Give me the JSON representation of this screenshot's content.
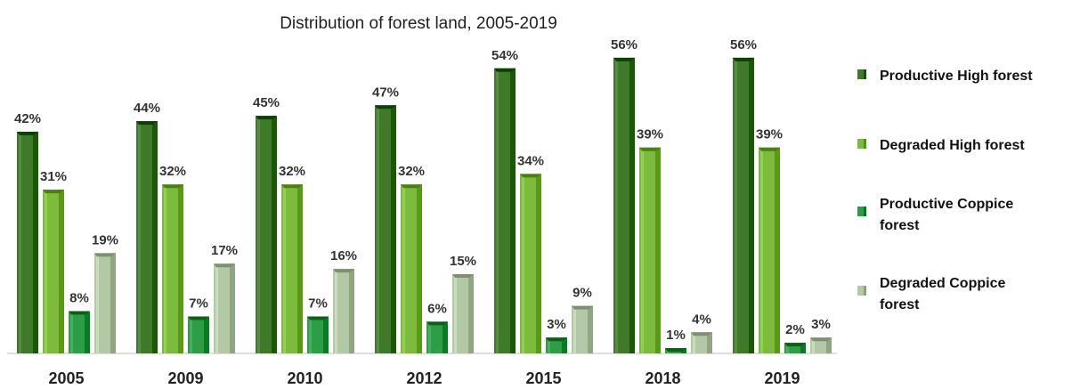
{
  "chart_data": {
    "type": "bar",
    "title": "Distribution of forest land, 2005-2019",
    "categories": [
      "2005",
      "2009",
      "2010",
      "2012",
      "2015",
      "2018",
      "2019"
    ],
    "series": [
      {
        "name": "Productive High forest",
        "values": [
          42,
          44,
          45,
          47,
          54,
          56,
          56
        ],
        "labels": [
          "42%",
          "44%",
          "45%",
          "47%",
          "54%",
          "56%",
          "56%"
        ],
        "color": "#3f7a2a"
      },
      {
        "name": "Degraded High forest",
        "values": [
          31,
          32,
          32,
          32,
          34,
          39,
          39
        ],
        "labels": [
          "31%",
          "32%",
          "32%",
          "32%",
          "34%",
          "39%",
          "39%"
        ],
        "color": "#7dbb3c"
      },
      {
        "name": "Productive Coppice forest",
        "values": [
          8,
          7,
          7,
          6,
          3,
          1,
          2
        ],
        "labels": [
          "8%",
          "7%",
          "7%",
          "6%",
          "3%",
          "1%",
          "2%"
        ],
        "color": "#2e9e46"
      },
      {
        "name": "Degraded Coppice forest",
        "values": [
          19,
          17,
          16,
          15,
          9,
          4,
          3
        ],
        "labels": [
          "19%",
          "17%",
          "16%",
          "15%",
          "9%",
          "4%",
          "3%"
        ],
        "color": "#b3c9a6"
      }
    ],
    "legend_lines": [
      [
        "Productive High forest"
      ],
      [
        "Degraded High forest"
      ],
      [
        "Productive Coppice",
        "forest"
      ],
      [
        "Degraded Coppice",
        "forest"
      ]
    ],
    "ylim": [
      0,
      60
    ],
    "legend_position": "right",
    "grid": false
  }
}
